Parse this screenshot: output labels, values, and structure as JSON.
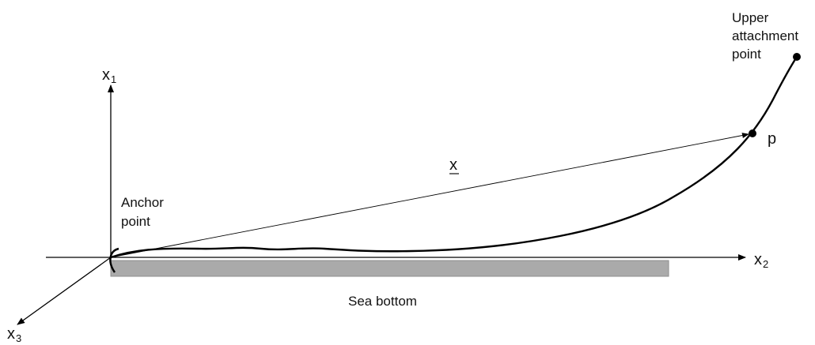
{
  "axes": {
    "x1": {
      "base": "x",
      "sub": "1"
    },
    "x2": {
      "base": "x",
      "sub": "2"
    },
    "x3": {
      "base": "x",
      "sub": "3"
    }
  },
  "labels": {
    "anchor_line1": "Anchor",
    "anchor_line2": "point",
    "upper_line1": "Upper",
    "upper_line2": "attachment",
    "upper_line3": "point",
    "point_p": "p",
    "vector_x": "x",
    "sea_bottom": "Sea bottom"
  },
  "colors": {
    "line": "#000000",
    "seabed": "#aaaaaa",
    "seabed_edge": "#8f8f8f"
  }
}
